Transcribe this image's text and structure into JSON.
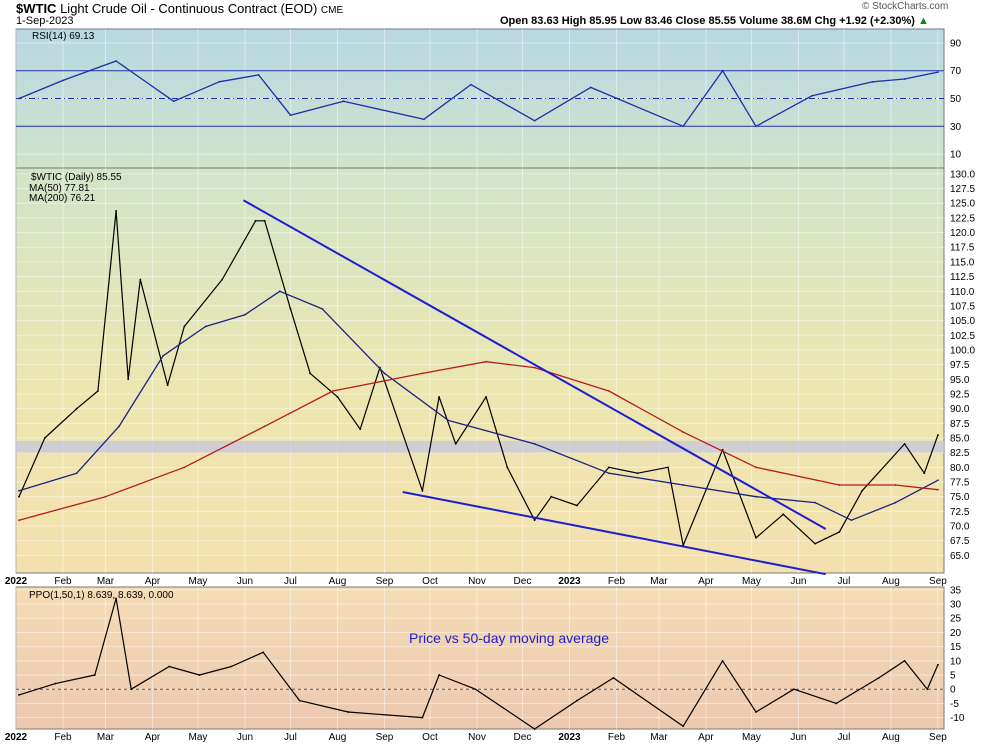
{
  "header": {
    "symbol": "$WTIC",
    "name": "Light Crude Oil - Continuous Contract (EOD)",
    "exchange": "CME",
    "date": "1-Sep-2023",
    "watermark": "© StockCharts.com",
    "quote": "Open 83.63  High 85.95  Low 83.46  Close 85.55  Volume 38.6M  Chg +1.92 (+2.30%)",
    "quote_arrow": "▲"
  },
  "chart_data": [
    {
      "type": "line",
      "panel": "rsi",
      "label": "RSI(14) 69.13",
      "ylim": [
        0,
        100
      ],
      "y_ticks": [
        "90",
        "70",
        "50",
        "30",
        "10"
      ],
      "reference_lines": [
        70,
        50,
        30
      ],
      "series": [
        {
          "name": "RSI(14)",
          "color": "#1a2fa8",
          "x": [
            "2022-01-03",
            "2022-02-01",
            "2022-03-08",
            "2022-04-15",
            "2022-05-15",
            "2022-06-10",
            "2022-07-01",
            "2022-08-05",
            "2022-09-27",
            "2022-10-28",
            "2022-12-09",
            "2023-01-15",
            "2023-03-17",
            "2023-04-12",
            "2023-05-04",
            "2023-06-10",
            "2023-07-20",
            "2023-08-10",
            "2023-09-01"
          ],
          "values": [
            50,
            63,
            77,
            48,
            62,
            67,
            38,
            48,
            35,
            60,
            34,
            58,
            30,
            70,
            30,
            52,
            62,
            64,
            69
          ]
        }
      ]
    },
    {
      "type": "line",
      "panel": "price",
      "label": "$WTIC (Daily) 85.55",
      "ylim": [
        62,
        131
      ],
      "y_ticks": [
        "130.0",
        "127.5",
        "125.0",
        "122.5",
        "120.0",
        "117.5",
        "115.0",
        "112.5",
        "110.0",
        "107.5",
        "105.0",
        "102.5",
        "100.0",
        "97.5",
        "95.0",
        "92.5",
        "90.0",
        "87.5",
        "85.0",
        "82.5",
        "80.0",
        "77.5",
        "75.0",
        "72.5",
        "70.0",
        "67.5",
        "65.0"
      ],
      "x_ticks": [
        "2022",
        "Feb",
        "Mar",
        "Apr",
        "May",
        "Jun",
        "Jul",
        "Aug",
        "Sep",
        "Oct",
        "Nov",
        "Dec",
        "2023",
        "Feb",
        "Mar",
        "Apr",
        "May",
        "Jun",
        "Jul",
        "Aug",
        "Sep"
      ],
      "highlight_band": [
        82.5,
        84.5
      ],
      "series": [
        {
          "name": "$WTIC (Daily)",
          "color": "#000000",
          "x": [
            "2022-01-03",
            "2022-01-20",
            "2022-02-10",
            "2022-02-24",
            "2022-03-08",
            "2022-03-16",
            "2022-03-24",
            "2022-04-11",
            "2022-04-22",
            "2022-05-17",
            "2022-06-08",
            "2022-06-14",
            "2022-07-01",
            "2022-07-14",
            "2022-08-01",
            "2022-08-16",
            "2022-08-29",
            "2022-09-26",
            "2022-10-07",
            "2022-10-18",
            "2022-11-07",
            "2022-11-21",
            "2022-12-09",
            "2022-12-20",
            "2023-01-06",
            "2023-01-27",
            "2023-02-15",
            "2023-03-07",
            "2023-03-17",
            "2023-04-12",
            "2023-05-04",
            "2023-05-22",
            "2023-06-12",
            "2023-06-28",
            "2023-07-13",
            "2023-08-10",
            "2023-08-23",
            "2023-09-01"
          ],
          "values": [
            75,
            85,
            90,
            93,
            123.7,
            95,
            112,
            94,
            104,
            112,
            122,
            122,
            107,
            96,
            92,
            86.5,
            97,
            76,
            92,
            84,
            92,
            80,
            71,
            75,
            73.5,
            80,
            79,
            80,
            66.7,
            83,
            68,
            72,
            67,
            69,
            76,
            84,
            79,
            85.5
          ]
        },
        {
          "name": "MA(50) 77.81",
          "color": "#1a237e",
          "x": [
            "2022-01-03",
            "2022-02-10",
            "2022-03-10",
            "2022-04-08",
            "2022-05-06",
            "2022-06-01",
            "2022-06-24",
            "2022-07-22",
            "2022-09-01",
            "2022-10-13",
            "2022-12-09",
            "2023-01-27",
            "2023-03-17",
            "2023-05-04",
            "2023-06-12",
            "2023-07-06",
            "2023-08-04",
            "2023-09-01"
          ],
          "values": [
            76,
            79,
            87,
            99,
            104,
            106,
            110,
            107,
            96,
            88,
            84,
            79,
            77,
            75,
            74,
            71,
            74,
            77.8
          ]
        },
        {
          "name": "MA(200) 76.21",
          "color": "#b71c1c",
          "x": [
            "2022-01-03",
            "2022-03-01",
            "2022-04-22",
            "2022-06-14",
            "2022-07-29",
            "2022-09-26",
            "2022-11-07",
            "2022-12-09",
            "2023-01-27",
            "2023-03-17",
            "2023-05-04",
            "2023-06-28",
            "2023-08-04",
            "2023-09-01"
          ],
          "values": [
            71,
            75,
            80,
            87,
            93,
            96,
            98,
            97,
            93,
            86,
            80,
            77,
            77,
            76.2
          ]
        }
      ],
      "annotations": [
        {
          "type": "trendline",
          "color": "#1e1ed0",
          "x": [
            "2022-05-31",
            "2023-06-19"
          ],
          "y": [
            125.5,
            69.5
          ]
        },
        {
          "type": "trendline",
          "color": "#1e1ed0",
          "x": [
            "2022-09-13",
            "2023-06-19"
          ],
          "y": [
            75.8,
            61.8
          ]
        }
      ]
    },
    {
      "type": "line",
      "panel": "ppo",
      "label": "PPO(1,50,1) 8.639, 8.639, 0.000",
      "annotation": "Price vs 50-day moving average",
      "ylim": [
        -14,
        36
      ],
      "y_ticks": [
        "35",
        "30",
        "25",
        "20",
        "15",
        "10",
        "5",
        "0",
        "-5",
        "-10"
      ],
      "x_ticks": [
        "2022",
        "Feb",
        "Mar",
        "Apr",
        "May",
        "Jun",
        "Jul",
        "Aug",
        "Sep",
        "Oct",
        "Nov",
        "Dec",
        "2023",
        "Feb",
        "Mar",
        "Apr",
        "May",
        "Jun",
        "Jul",
        "Aug",
        "Sep"
      ],
      "series": [
        {
          "name": "PPO(1,50,1)",
          "color": "#000000",
          "x": [
            "2022-01-03",
            "2022-01-27",
            "2022-02-22",
            "2022-03-08",
            "2022-03-18",
            "2022-04-12",
            "2022-05-02",
            "2022-05-23",
            "2022-06-13",
            "2022-07-07",
            "2022-08-08",
            "2022-09-26",
            "2022-10-07",
            "2022-10-31",
            "2022-12-09",
            "2023-01-06",
            "2023-01-30",
            "2023-03-17",
            "2023-04-12",
            "2023-05-04",
            "2023-05-29",
            "2023-06-26",
            "2023-07-24",
            "2023-08-10",
            "2023-08-25",
            "2023-09-01"
          ],
          "values": [
            -2,
            2,
            5,
            32,
            0,
            8,
            5,
            8,
            13,
            -4,
            -8,
            -10,
            5,
            0,
            -14,
            -4,
            4,
            -13,
            10,
            -8,
            0,
            -5,
            4,
            10,
            0,
            8.6
          ]
        }
      ]
    }
  ]
}
